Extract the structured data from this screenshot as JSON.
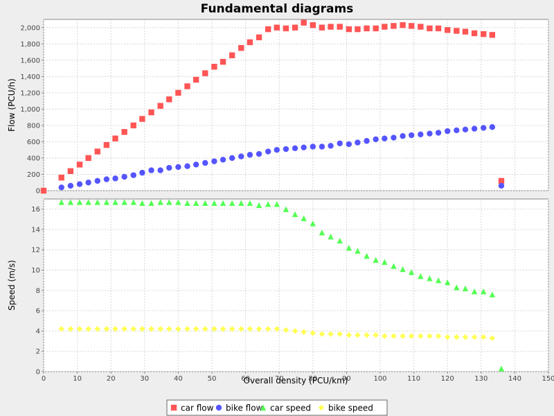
{
  "chart_data": {
    "type": "scatter",
    "title": "Fundamental diagrams",
    "xlabel": "Overall density (PCU/km)",
    "xlim": [
      0,
      150
    ],
    "xticks": [
      0,
      10,
      20,
      30,
      40,
      50,
      60,
      70,
      80,
      90,
      100,
      110,
      120,
      130,
      140,
      150
    ],
    "grid": true,
    "legend_position": "bottom",
    "colors": {
      "car_flow": "#ff5555",
      "bike_flow": "#5555ff",
      "car_speed": "#55ff55",
      "bike_speed": "#ffff55"
    },
    "subplots": [
      {
        "ylabel": "Flow (PCU/h)",
        "ylim": [
          0,
          2100
        ],
        "yticks": [
          0,
          200,
          400,
          600,
          800,
          1000,
          1200,
          1400,
          1600,
          1800,
          2000
        ],
        "ytick_labels": [
          "0",
          "200",
          "400",
          "600",
          "800",
          "1,000",
          "1,200",
          "1,400",
          "1,600",
          "1,800",
          "2,000"
        ],
        "series": [
          {
            "name": "car flow",
            "marker": "square",
            "color": "#ff5555",
            "x": [
              0,
              5.3,
              8,
              10.7,
              13.3,
              16,
              18.7,
              21.3,
              24,
              26.7,
              29.3,
              32,
              34.7,
              37.3,
              40,
              42.7,
              45.3,
              48,
              50.7,
              53.3,
              56,
              58.7,
              61.3,
              64,
              66.7,
              69.3,
              72,
              74.7,
              77.3,
              80,
              82.7,
              85.3,
              88,
              90.7,
              93.3,
              96,
              98.7,
              101.3,
              104,
              106.7,
              109.3,
              112,
              114.7,
              117.3,
              120,
              122.7,
              125.3,
              128,
              130.7,
              133.3,
              136
            ],
            "y": [
              0,
              160,
              240,
              320,
              400,
              480,
              560,
              640,
              720,
              800,
              880,
              960,
              1040,
              1120,
              1200,
              1280,
              1360,
              1440,
              1520,
              1580,
              1660,
              1750,
              1820,
              1880,
              1980,
              2000,
              1990,
              2000,
              2060,
              2030,
              2000,
              2010,
              2010,
              1980,
              1980,
              1990,
              1990,
              2010,
              2020,
              2030,
              2020,
              2010,
              1990,
              1990,
              1970,
              1960,
              1950,
              1930,
              1920,
              1910,
              120
            ]
          },
          {
            "name": "bike flow",
            "marker": "circle",
            "color": "#5555ff",
            "x": [
              5.3,
              8,
              10.7,
              13.3,
              16,
              18.7,
              21.3,
              24,
              26.7,
              29.3,
              32,
              34.7,
              37.3,
              40,
              42.7,
              45.3,
              48,
              50.7,
              53.3,
              56,
              58.7,
              61.3,
              64,
              66.7,
              69.3,
              72,
              74.7,
              77.3,
              80,
              82.7,
              85.3,
              88,
              90.7,
              93.3,
              96,
              98.7,
              101.3,
              104,
              106.7,
              109.3,
              112,
              114.7,
              117.3,
              120,
              122.7,
              125.3,
              128,
              130.7,
              133.3,
              136
            ],
            "y": [
              40,
              60,
              80,
              100,
              120,
              140,
              150,
              170,
              190,
              220,
              250,
              250,
              280,
              290,
              300,
              320,
              340,
              360,
              380,
              400,
              420,
              440,
              450,
              480,
              500,
              510,
              520,
              530,
              540,
              540,
              550,
              580,
              570,
              590,
              610,
              630,
              640,
              650,
              670,
              680,
              690,
              700,
              710,
              730,
              740,
              750,
              760,
              770,
              780,
              60
            ]
          }
        ]
      },
      {
        "ylabel": "Speed (m/s)",
        "ylim": [
          0,
          17
        ],
        "yticks": [
          0,
          2,
          4,
          6,
          8,
          10,
          12,
          14,
          16
        ],
        "ytick_labels": [
          "0",
          "2",
          "4",
          "6",
          "8",
          "10",
          "12",
          "14",
          "16"
        ],
        "series": [
          {
            "name": "car speed",
            "marker": "triangle",
            "color": "#55ff55",
            "x": [
              5.3,
              8,
              10.7,
              13.3,
              16,
              18.7,
              21.3,
              24,
              26.7,
              29.3,
              32,
              34.7,
              37.3,
              40,
              42.7,
              45.3,
              48,
              50.7,
              53.3,
              56,
              58.7,
              61.3,
              64,
              66.7,
              69.3,
              72,
              74.7,
              77.3,
              80,
              82.7,
              85.3,
              88,
              90.7,
              93.3,
              96,
              98.7,
              101.3,
              104,
              106.7,
              109.3,
              112,
              114.7,
              117.3,
              120,
              122.7,
              125.3,
              128,
              130.7,
              133.3,
              136
            ],
            "y": [
              16.7,
              16.7,
              16.7,
              16.7,
              16.7,
              16.7,
              16.7,
              16.7,
              16.7,
              16.6,
              16.6,
              16.7,
              16.7,
              16.7,
              16.6,
              16.6,
              16.6,
              16.6,
              16.6,
              16.6,
              16.6,
              16.6,
              16.4,
              16.5,
              16.5,
              16.0,
              15.5,
              15.1,
              14.6,
              13.7,
              13.3,
              12.9,
              12.2,
              11.9,
              11.4,
              11.0,
              10.8,
              10.4,
              10.1,
              9.8,
              9.4,
              9.2,
              9.0,
              8.8,
              8.3,
              8.2,
              7.9,
              7.9,
              7.6,
              0.3
            ]
          },
          {
            "name": "bike speed",
            "marker": "diamond",
            "color": "#ffff55",
            "x": [
              5.3,
              8,
              10.7,
              13.3,
              16,
              18.7,
              21.3,
              24,
              26.7,
              29.3,
              32,
              34.7,
              37.3,
              40,
              42.7,
              45.3,
              48,
              50.7,
              53.3,
              56,
              58.7,
              61.3,
              64,
              66.7,
              69.3,
              72,
              74.7,
              77.3,
              80,
              82.7,
              85.3,
              88,
              90.7,
              93.3,
              96,
              98.7,
              101.3,
              104,
              106.7,
              109.3,
              112,
              114.7,
              117.3,
              120,
              122.7,
              125.3,
              128,
              130.7,
              133.3
            ],
            "y": [
              4.2,
              4.2,
              4.2,
              4.2,
              4.2,
              4.2,
              4.2,
              4.2,
              4.2,
              4.2,
              4.2,
              4.2,
              4.2,
              4.2,
              4.2,
              4.2,
              4.2,
              4.2,
              4.2,
              4.2,
              4.2,
              4.2,
              4.2,
              4.2,
              4.2,
              4.1,
              4.0,
              3.9,
              3.8,
              3.7,
              3.7,
              3.7,
              3.6,
              3.6,
              3.6,
              3.6,
              3.5,
              3.5,
              3.5,
              3.5,
              3.5,
              3.5,
              3.5,
              3.4,
              3.4,
              3.4,
              3.4,
              3.4,
              3.3
            ]
          }
        ]
      }
    ],
    "legend": [
      "car flow",
      "bike flow",
      "car speed",
      "bike speed"
    ]
  }
}
